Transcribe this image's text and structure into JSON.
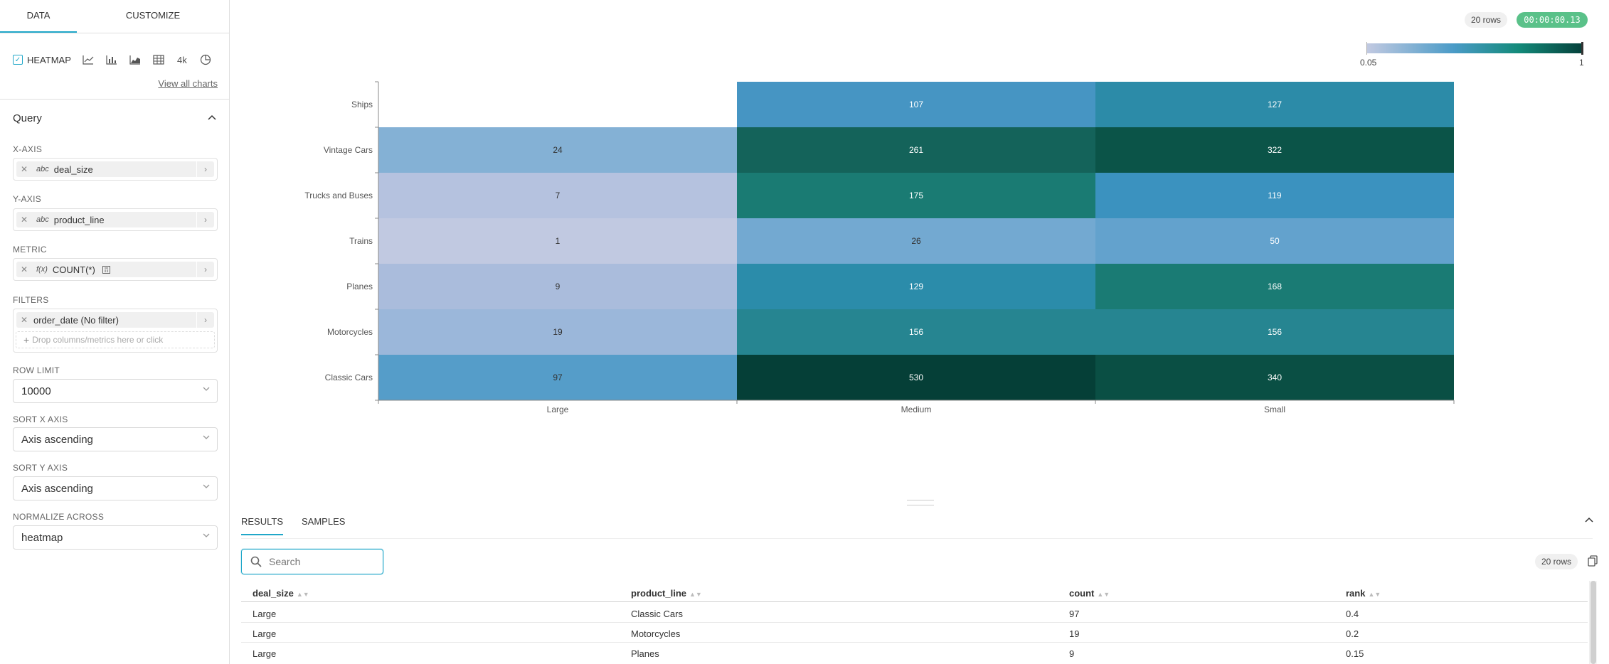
{
  "left_panel": {
    "tabs": [
      {
        "label": "DATA"
      },
      {
        "label": "CUSTOMIZE"
      }
    ],
    "viz": {
      "selected_label": "HEATMAP",
      "icons": [
        "line-chart-icon",
        "bar-chart-icon",
        "area-chart-icon",
        "table-icon",
        "big-number-icon",
        "pie-chart-icon"
      ],
      "big_number_label": "4k",
      "view_all": "View all charts"
    },
    "query": {
      "title": "Query",
      "x_axis": {
        "label": "X-AXIS",
        "type": "abc",
        "value": "deal_size"
      },
      "y_axis": {
        "label": "Y-AXIS",
        "type": "abc",
        "value": "product_line"
      },
      "metric": {
        "label": "METRIC",
        "type": "f(x)",
        "value": "COUNT(*)"
      },
      "filters": {
        "label": "FILTERS",
        "value": "order_date (No filter)",
        "drop_placeholder": "Drop columns/metrics here or click"
      },
      "row_limit": {
        "label": "ROW LIMIT",
        "value": "10000"
      },
      "sort_x": {
        "label": "SORT X AXIS",
        "value": "Axis ascending"
      },
      "sort_y": {
        "label": "SORT Y AXIS",
        "value": "Axis ascending"
      },
      "normalize": {
        "label": "NORMALIZE ACROSS",
        "value": "heatmap"
      }
    }
  },
  "header": {
    "row_count": "20 rows",
    "timer": "00:00:00.13"
  },
  "legend": {
    "min": "0.05",
    "max": "1",
    "colors": [
      "#c1c9e1",
      "#4a9bc7",
      "#138a7a",
      "#05403a"
    ]
  },
  "chart_data": {
    "type": "heatmap",
    "x_categories": [
      "Large",
      "Medium",
      "Small"
    ],
    "y_categories": [
      "Ships",
      "Vintage Cars",
      "Trucks and Buses",
      "Trains",
      "Planes",
      "Motorcycles",
      "Classic Cars"
    ],
    "values": [
      [
        null,
        107,
        127
      ],
      [
        24,
        261,
        322
      ],
      [
        7,
        175,
        119
      ],
      [
        1,
        26,
        50
      ],
      [
        9,
        129,
        168
      ],
      [
        19,
        156,
        156
      ],
      [
        97,
        530,
        340
      ]
    ],
    "colors": [
      [
        null,
        "#4695c3",
        "#2c8ba8"
      ],
      [
        null,
        "#14635a",
        "#0b5448"
      ],
      [
        null,
        "#1a7b73",
        "#3b92bf"
      ],
      [
        null,
        "#73a9d1",
        "#63a2cd"
      ],
      [
        null,
        "#2b8caa",
        "#1a7b74"
      ],
      [
        null,
        "#268591",
        "#268591"
      ],
      [
        "#559dc9",
        "#053f37",
        "#0a4f44"
      ]
    ],
    "cell_fills_by_column": [
      [
        "#ffffff",
        "#84b1d5",
        "#b5c2df",
        "#c1c9e1",
        "#aabcdc",
        "#9bb7da",
        "#559dc9"
      ]
    ],
    "text_colors": [
      [
        null,
        "#ffffff",
        "#ffffff"
      ],
      [
        "#333333",
        "#ffffff",
        "#ffffff"
      ],
      [
        "#333333",
        "#ffffff",
        "#ffffff"
      ],
      [
        "#333333",
        "#333333",
        "#ffffff"
      ],
      [
        "#333333",
        "#ffffff",
        "#ffffff"
      ],
      [
        "#333333",
        "#ffffff",
        "#ffffff"
      ],
      [
        "#333333",
        "#ffffff",
        "#ffffff"
      ]
    ]
  },
  "results": {
    "tabs": [
      {
        "label": "RESULTS"
      },
      {
        "label": "SAMPLES"
      }
    ],
    "search_placeholder": "Search",
    "row_count": "20 rows",
    "columns": [
      "deal_size",
      "product_line",
      "count",
      "rank"
    ],
    "rows": [
      [
        "Large",
        "Classic Cars",
        "97",
        "0.4"
      ],
      [
        "Large",
        "Motorcycles",
        "19",
        "0.2"
      ],
      [
        "Large",
        "Planes",
        "9",
        "0.15"
      ]
    ]
  }
}
